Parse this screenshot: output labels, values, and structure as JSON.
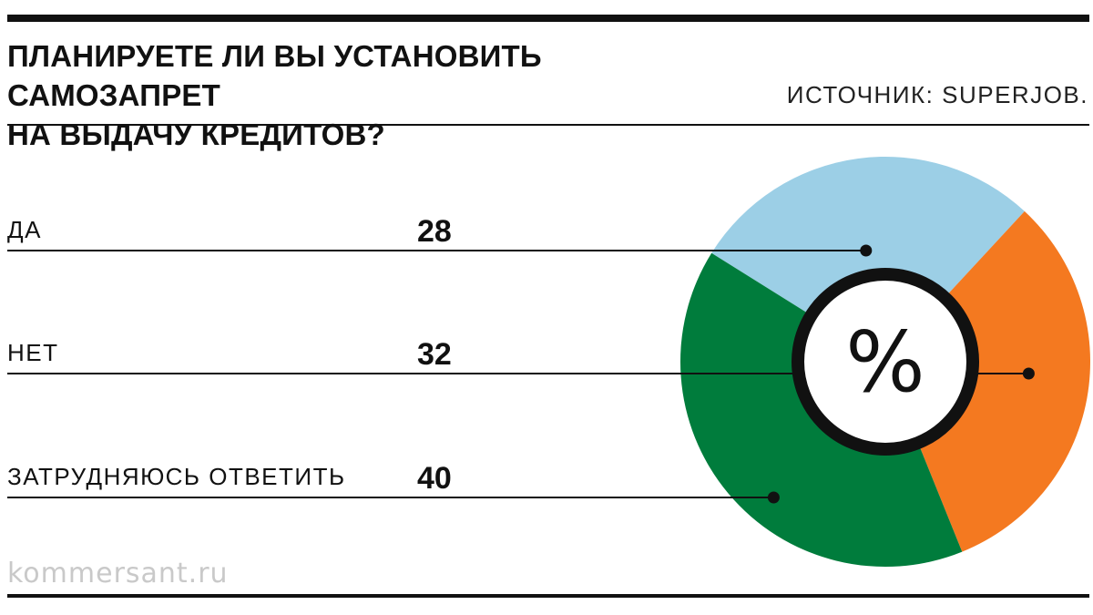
{
  "header": {
    "title_line1": "ПЛАНИРУЕТЕ ЛИ ВЫ УСТАНОВИТЬ САМОЗАПРЕТ",
    "title_line2": "НА ВЫДАЧУ КРЕДИТОВ?",
    "source": "ИСТОЧНИК: SUPERJOB."
  },
  "footer": {
    "watermark": "kommersant.ru"
  },
  "chart_data": {
    "type": "pie",
    "title": "ПЛАНИРУЕТЕ ЛИ ВЫ УСТАНОВИТЬ САМОЗАПРЕТ НА ВЫДАЧУ КРЕДИТОВ?",
    "center_label": "%",
    "categories": [
      "ДА",
      "НЕТ",
      "ЗАТРУДНЯЮСЬ ОТВЕТИТЬ"
    ],
    "values": [
      28,
      32,
      40
    ],
    "colors": [
      "#9ccfe6",
      "#f47920",
      "#007c3c"
    ],
    "legend_placement": "left"
  }
}
